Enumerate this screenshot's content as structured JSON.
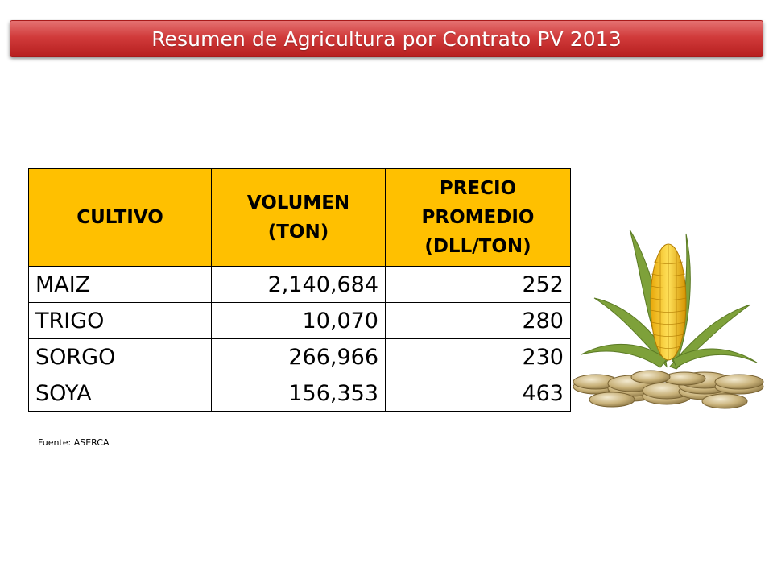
{
  "slide": {
    "title": "Resumen de Agricultura por Contrato PV 2013",
    "source": "Fuente: ASERCA"
  },
  "table": {
    "header_color": "#ffc000",
    "headers": [
      [
        "CULTIVO"
      ],
      [
        "VOLUMEN",
        "(TON)"
      ],
      [
        "PRECIO",
        "PROMEDIO",
        "(DLL/TON)"
      ]
    ],
    "rows": [
      {
        "cultivo": "MAIZ",
        "volumen": "2,140,684",
        "precio": "252"
      },
      {
        "cultivo": "TRIGO",
        "volumen": "10,070",
        "precio": "280"
      },
      {
        "cultivo": "SORGO",
        "volumen": "266,966",
        "precio": "230"
      },
      {
        "cultivo": "SOYA",
        "volumen": "156,353",
        "precio": "463"
      }
    ]
  },
  "illustration": {
    "icons": [
      "corn-cob-icon",
      "coin-stack-icon"
    ],
    "colors": {
      "corn": "#f2c21a",
      "husk": "#7ea13a",
      "coin": "#c9b27a"
    }
  }
}
